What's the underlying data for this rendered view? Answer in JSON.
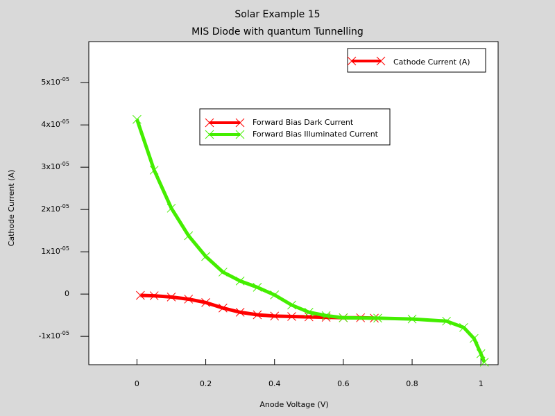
{
  "chart_data": {
    "type": "line",
    "title": "Solar Example 15",
    "subtitle": "MIS Diode with quantum Tunnelling",
    "x_label": "Anode Voltage (V)",
    "y_label": "Cathode Current (A)",
    "xlim": [
      -0.14,
      1.05
    ],
    "ylim": [
      -1.67e-05,
      5.97e-05
    ],
    "xticks": [
      0,
      0.2,
      0.4,
      0.6,
      0.8,
      1
    ],
    "yticks": [
      {
        "value": -1e-05,
        "label": "-1x10",
        "power": "-05"
      },
      0,
      {
        "value": 1e-05,
        "label": "1x10",
        "power": "-05"
      },
      {
        "value": 2e-05,
        "label": "2x10",
        "power": "-05"
      },
      {
        "value": 3e-05,
        "label": "3x10",
        "power": "-05"
      },
      {
        "value": 4e-05,
        "label": "4x10",
        "power": "-05"
      },
      {
        "value": 5e-05,
        "label": "5x10",
        "power": "-05"
      }
    ],
    "axis_legend": {
      "name": "Cathode Current (A)",
      "color": "#ff0000"
    },
    "series": [
      {
        "name": "Forward Bias Dark Current",
        "color": "#ff0000",
        "x": [
          0.01,
          0.05,
          0.1,
          0.15,
          0.2,
          0.25,
          0.3,
          0.35,
          0.4,
          0.45,
          0.5,
          0.55,
          0.6,
          0.65,
          0.69
        ],
        "values": [
          -3e-07,
          -4e-07,
          -7e-07,
          -1.2e-06,
          -2e-06,
          -3.3e-06,
          -4.3e-06,
          -4.9e-06,
          -5.2e-06,
          -5.3e-06,
          -5.4e-06,
          -5.5e-06,
          -5.6e-06,
          -5.6e-06,
          -5.7e-06
        ]
      },
      {
        "name": "Forward Bias Illuminated Current",
        "color": "#44ee00",
        "x": [
          0,
          0.05,
          0.1,
          0.15,
          0.2,
          0.25,
          0.3,
          0.35,
          0.4,
          0.45,
          0.5,
          0.55,
          0.6,
          0.7,
          0.8,
          0.9,
          0.95,
          0.98,
          1,
          1.01
        ],
        "values": [
          4.13e-05,
          2.93e-05,
          2.03e-05,
          1.38e-05,
          8.9e-06,
          5.2e-06,
          3.1e-06,
          1.6e-06,
          -2e-07,
          -2.6e-06,
          -4.3e-06,
          -5.1e-06,
          -5.6e-06,
          -5.7e-06,
          -5.9e-06,
          -6.4e-06,
          -7.9e-06,
          -1.05e-05,
          -1.41e-05,
          -1.61e-05
        ]
      }
    ]
  }
}
